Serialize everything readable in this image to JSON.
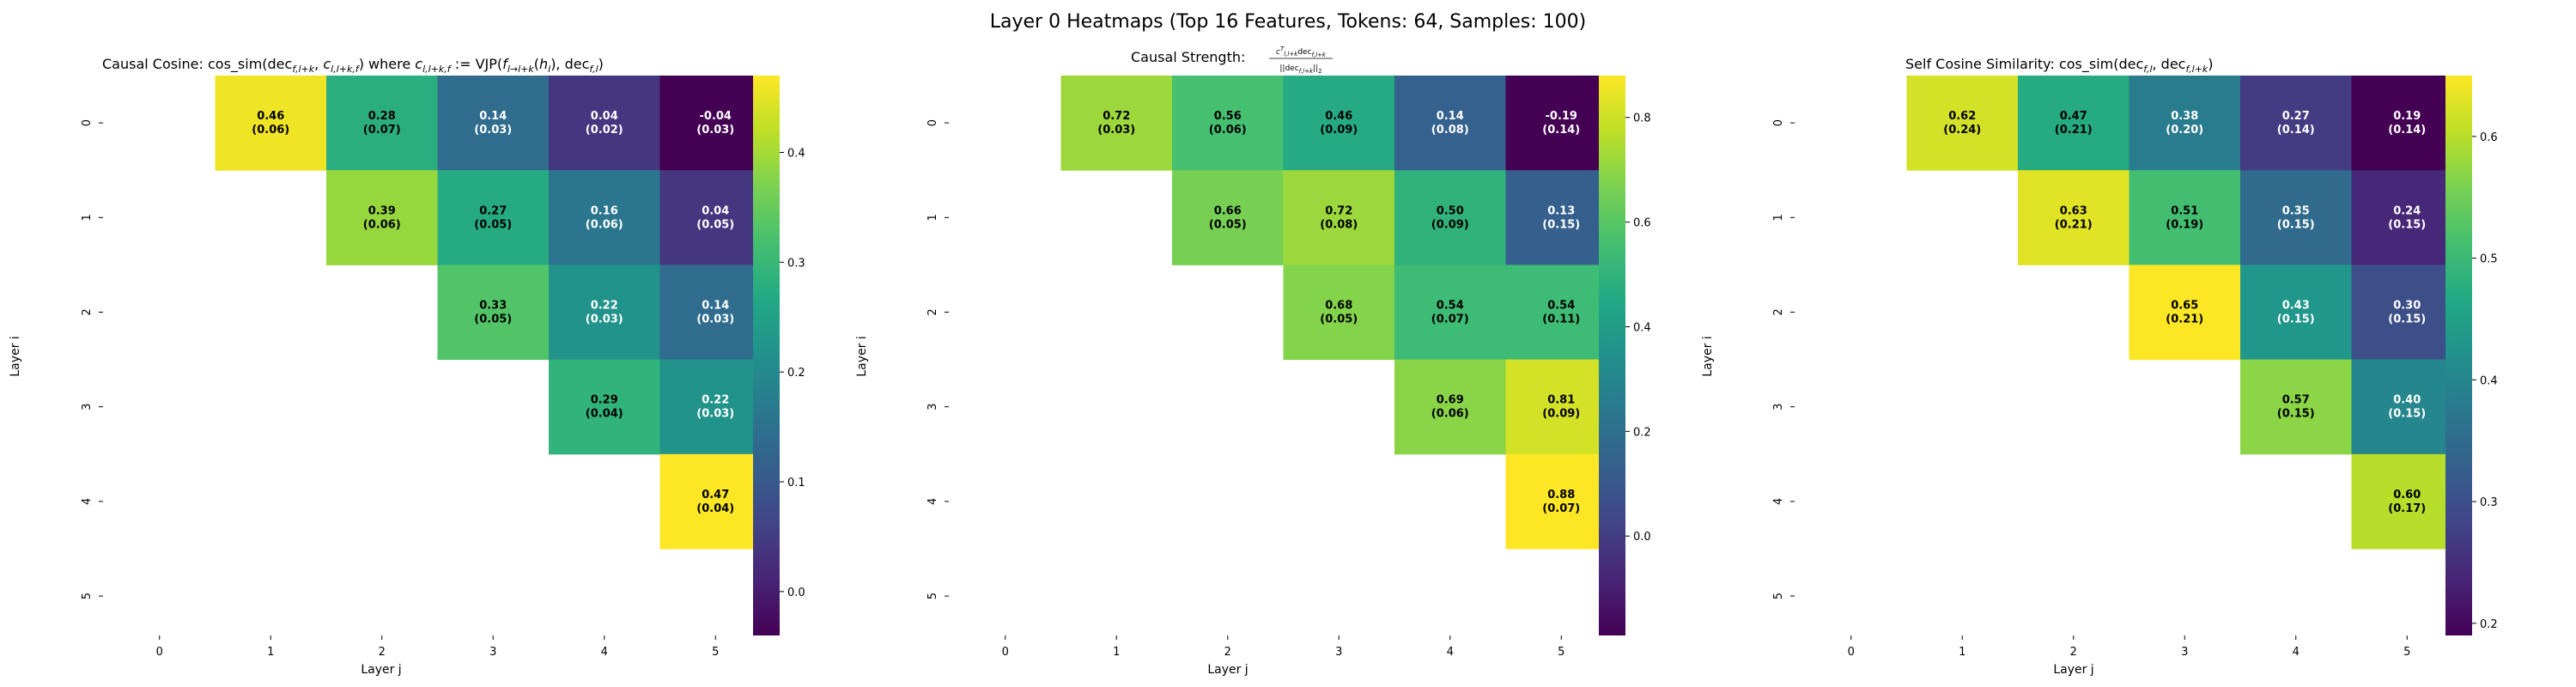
{
  "figure": {
    "title": "Layer 0 Heatmaps (Top 16 Features, Tokens: 64, Samples: 100)"
  },
  "chart_data": [
    {
      "type": "heatmap",
      "title": "Causal Cosine: cos_sim(dec_{f,l+k}, c_{l,l+k,f}) where c_{l,l+k,f} := VJP(f_{l→l+k}(h_l), dec_{f,l})",
      "xlabel": "Layer j",
      "ylabel": "Layer i",
      "x_ticks": [
        "0",
        "1",
        "2",
        "3",
        "4",
        "5"
      ],
      "y_ticks": [
        "0",
        "1",
        "2",
        "3",
        "4",
        "5"
      ],
      "colormap": "viridis",
      "vmin": -0.04,
      "vmax": 0.47,
      "colorbar_ticks": [
        "0.0",
        "0.1",
        "0.2",
        "0.3",
        "0.4"
      ],
      "cells": [
        {
          "i": 0,
          "j": 1,
          "value": 0.46,
          "std": 0.06
        },
        {
          "i": 0,
          "j": 2,
          "value": 0.28,
          "std": 0.07
        },
        {
          "i": 0,
          "j": 3,
          "value": 0.14,
          "std": 0.03
        },
        {
          "i": 0,
          "j": 4,
          "value": 0.04,
          "std": 0.02
        },
        {
          "i": 0,
          "j": 5,
          "value": -0.04,
          "std": 0.03
        },
        {
          "i": 1,
          "j": 2,
          "value": 0.39,
          "std": 0.06
        },
        {
          "i": 1,
          "j": 3,
          "value": 0.27,
          "std": 0.05
        },
        {
          "i": 1,
          "j": 4,
          "value": 0.16,
          "std": 0.06
        },
        {
          "i": 1,
          "j": 5,
          "value": 0.04,
          "std": 0.05
        },
        {
          "i": 2,
          "j": 3,
          "value": 0.33,
          "std": 0.05
        },
        {
          "i": 2,
          "j": 4,
          "value": 0.22,
          "std": 0.03
        },
        {
          "i": 2,
          "j": 5,
          "value": 0.14,
          "std": 0.03
        },
        {
          "i": 3,
          "j": 4,
          "value": 0.29,
          "std": 0.04
        },
        {
          "i": 3,
          "j": 5,
          "value": 0.22,
          "std": 0.03
        },
        {
          "i": 4,
          "j": 5,
          "value": 0.47,
          "std": 0.04
        }
      ]
    },
    {
      "type": "heatmap",
      "title": "Causal Strength: c_{l,l+k}^T dec_{f,l+k} / ||dec_{f,l+k}||_2",
      "xlabel": "Layer j",
      "ylabel": "Layer i",
      "x_ticks": [
        "0",
        "1",
        "2",
        "3",
        "4",
        "5"
      ],
      "y_ticks": [
        "0",
        "1",
        "2",
        "3",
        "4",
        "5"
      ],
      "colormap": "viridis",
      "vmin": -0.19,
      "vmax": 0.88,
      "colorbar_ticks": [
        "0.0",
        "0.2",
        "0.4",
        "0.6",
        "0.8"
      ],
      "cells": [
        {
          "i": 0,
          "j": 1,
          "value": 0.72,
          "std": 0.03
        },
        {
          "i": 0,
          "j": 2,
          "value": 0.56,
          "std": 0.06
        },
        {
          "i": 0,
          "j": 3,
          "value": 0.46,
          "std": 0.09
        },
        {
          "i": 0,
          "j": 4,
          "value": 0.14,
          "std": 0.08
        },
        {
          "i": 0,
          "j": 5,
          "value": -0.19,
          "std": 0.14
        },
        {
          "i": 1,
          "j": 2,
          "value": 0.66,
          "std": 0.05
        },
        {
          "i": 1,
          "j": 3,
          "value": 0.72,
          "std": 0.08
        },
        {
          "i": 1,
          "j": 4,
          "value": 0.5,
          "std": 0.09
        },
        {
          "i": 1,
          "j": 5,
          "value": 0.13,
          "std": 0.15
        },
        {
          "i": 2,
          "j": 3,
          "value": 0.68,
          "std": 0.05
        },
        {
          "i": 2,
          "j": 4,
          "value": 0.54,
          "std": 0.07
        },
        {
          "i": 2,
          "j": 5,
          "value": 0.54,
          "std": 0.11
        },
        {
          "i": 3,
          "j": 4,
          "value": 0.69,
          "std": 0.06
        },
        {
          "i": 3,
          "j": 5,
          "value": 0.81,
          "std": 0.09
        },
        {
          "i": 4,
          "j": 5,
          "value": 0.88,
          "std": 0.07
        }
      ]
    },
    {
      "type": "heatmap",
      "title": "Self Cosine Similarity: cos_sim(dec_{f,l}, dec_{f,l+k})",
      "xlabel": "Layer j",
      "ylabel": "Layer i",
      "x_ticks": [
        "0",
        "1",
        "2",
        "3",
        "4",
        "5"
      ],
      "y_ticks": [
        "0",
        "1",
        "2",
        "3",
        "4",
        "5"
      ],
      "colormap": "viridis",
      "vmin": 0.19,
      "vmax": 0.65,
      "colorbar_ticks": [
        "0.2",
        "0.3",
        "0.4",
        "0.5",
        "0.6"
      ],
      "cells": [
        {
          "i": 0,
          "j": 1,
          "value": 0.62,
          "std": 0.24
        },
        {
          "i": 0,
          "j": 2,
          "value": 0.47,
          "std": 0.21
        },
        {
          "i": 0,
          "j": 3,
          "value": 0.38,
          "std": 0.2
        },
        {
          "i": 0,
          "j": 4,
          "value": 0.27,
          "std": 0.14
        },
        {
          "i": 0,
          "j": 5,
          "value": 0.19,
          "std": 0.14
        },
        {
          "i": 1,
          "j": 2,
          "value": 0.63,
          "std": 0.21
        },
        {
          "i": 1,
          "j": 3,
          "value": 0.51,
          "std": 0.19
        },
        {
          "i": 1,
          "j": 4,
          "value": 0.35,
          "std": 0.15
        },
        {
          "i": 1,
          "j": 5,
          "value": 0.24,
          "std": 0.15
        },
        {
          "i": 2,
          "j": 3,
          "value": 0.65,
          "std": 0.21
        },
        {
          "i": 2,
          "j": 4,
          "value": 0.43,
          "std": 0.15
        },
        {
          "i": 2,
          "j": 5,
          "value": 0.3,
          "std": 0.15
        },
        {
          "i": 3,
          "j": 4,
          "value": 0.57,
          "std": 0.15
        },
        {
          "i": 3,
          "j": 5,
          "value": 0.4,
          "std": 0.15
        },
        {
          "i": 4,
          "j": 5,
          "value": 0.6,
          "std": 0.17
        }
      ]
    }
  ]
}
